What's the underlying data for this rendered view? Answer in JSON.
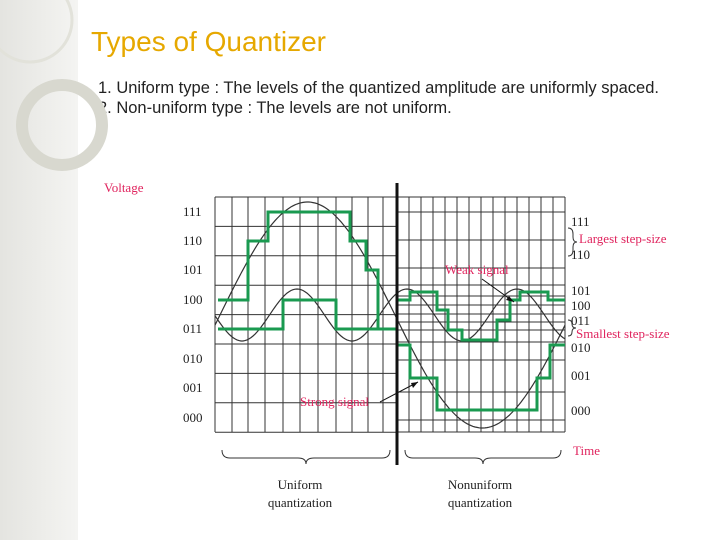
{
  "title": "Types of Quantizer",
  "body": [
    "1. Uniform type : The levels of the quantized amplitude are uniformly spaced.",
    "2. Non-uniform type : The levels are not uniform."
  ],
  "figure": {
    "y_axis_label": "Voltage",
    "left_levels": [
      "111",
      "110",
      "101",
      "100",
      "011",
      "010",
      "001",
      "000"
    ],
    "right_levels": [
      "111",
      "110",
      "101",
      "100",
      "011",
      "010",
      "001",
      "000"
    ],
    "annotations": {
      "largest": "Largest step-size",
      "weak": "Weak signal",
      "smallest": "Smallest step-size",
      "strong": "Strong signal",
      "time": "Time"
    },
    "captions": {
      "uniform": [
        "Uniform",
        "quantization"
      ],
      "nonuniform": [
        "Nonuniform",
        "quantization"
      ]
    }
  }
}
